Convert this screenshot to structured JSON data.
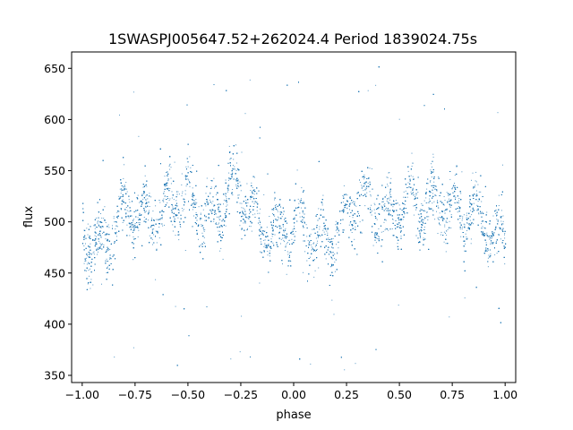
{
  "chart_data": {
    "type": "scatter",
    "title": "1SWASPJ005647.52+262024.4 Period 1839024.75s",
    "xlabel": "phase",
    "ylabel": "flux",
    "xlim": [
      -1.05,
      1.05
    ],
    "ylim": [
      343,
      666
    ],
    "xticks": [
      -1.0,
      -0.75,
      -0.5,
      -0.25,
      0.0,
      0.25,
      0.5,
      0.75,
      1.0
    ],
    "xtick_labels": [
      "−1.00",
      "−0.75",
      "−0.50",
      "−0.25",
      "0.00",
      "0.25",
      "0.50",
      "0.75",
      "1.00"
    ],
    "yticks": [
      350,
      400,
      450,
      500,
      550,
      600,
      650
    ],
    "ytick_labels": [
      "350",
      "400",
      "450",
      "500",
      "550",
      "600",
      "650"
    ],
    "grid": false,
    "legend": "none",
    "point_color": "#1f77b4",
    "series": [
      {
        "points_description_note": "",
        "x_range": [
          -1.0,
          1.0
        ],
        "trend_x": [
          -1.0,
          -0.9,
          -0.8,
          -0.7,
          -0.6,
          -0.5,
          -0.4,
          -0.3,
          -0.2,
          -0.1,
          0.0,
          0.1,
          0.2,
          0.3,
          0.4,
          0.5,
          0.6,
          0.7,
          0.8,
          0.9,
          1.0
        ],
        "trend_y": [
          490,
          485,
          498,
          512,
          520,
          515,
          510,
          530,
          505,
          500,
          490,
          485,
          495,
          510,
          520,
          515,
          510,
          530,
          505,
          498,
          490
        ],
        "spread": 32
      }
    ]
  }
}
